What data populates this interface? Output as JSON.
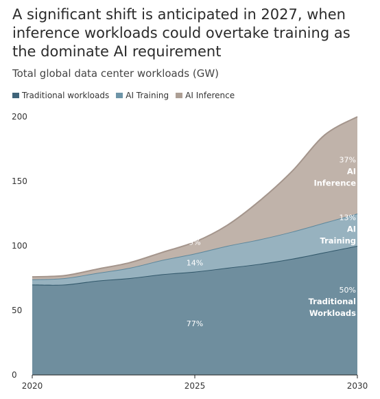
{
  "title": "A significant shift is anticipated in 2027, when inference workloads could overtake training as the dominate AI requirement",
  "subtitle": "Total global data center workloads (GW)",
  "legend": [
    {
      "label": "Traditional workloads",
      "color": "#3f6479"
    },
    {
      "label": "AI Training",
      "color": "#6e95a8"
    },
    {
      "label": "AI Inference",
      "color": "#ad9f95"
    }
  ],
  "chart_data": {
    "type": "area",
    "stacked": true,
    "x": [
      2020,
      2021,
      2022,
      2023,
      2024,
      2025,
      2026,
      2027,
      2028,
      2029,
      2030
    ],
    "series": [
      {
        "name": "Traditional workloads",
        "color": "#6f8e9e",
        "edge": "#2f5568",
        "values": [
          70,
          70,
          73,
          75,
          78,
          80,
          83,
          86,
          90,
          95,
          100
        ]
      },
      {
        "name": "AI Training",
        "color": "#97b2bf",
        "edge": "#5c879c",
        "values": [
          4,
          5,
          6,
          8,
          11,
          14,
          17,
          19,
          21,
          23,
          25
        ]
      },
      {
        "name": "AI Inference",
        "color": "#c0b3aa",
        "edge": "#a4958c",
        "values": [
          2,
          2,
          3,
          4,
          6,
          9,
          16,
          30,
          47,
          68,
          75
        ]
      }
    ],
    "ylim": [
      0,
      200
    ],
    "yticks": [
      0,
      50,
      100,
      150,
      200
    ],
    "xticks": [
      2020,
      2025,
      2030
    ],
    "annotations": {
      "mid_2025": [
        {
          "series": "Traditional workloads",
          "text": "77%"
        },
        {
          "series": "AI Training",
          "text": "14%"
        },
        {
          "series": "AI Inference",
          "text": "9%"
        }
      ],
      "end_2030": [
        {
          "series": "Traditional workloads",
          "pct": "50%",
          "label_line1": "Traditional",
          "label_line2": "Workloads"
        },
        {
          "series": "AI Training",
          "pct": "13%",
          "label_line1": "AI",
          "label_line2": "Training"
        },
        {
          "series": "AI Inference",
          "pct": "37%",
          "label_line1": "AI",
          "label_line2": "Inference"
        }
      ]
    }
  }
}
